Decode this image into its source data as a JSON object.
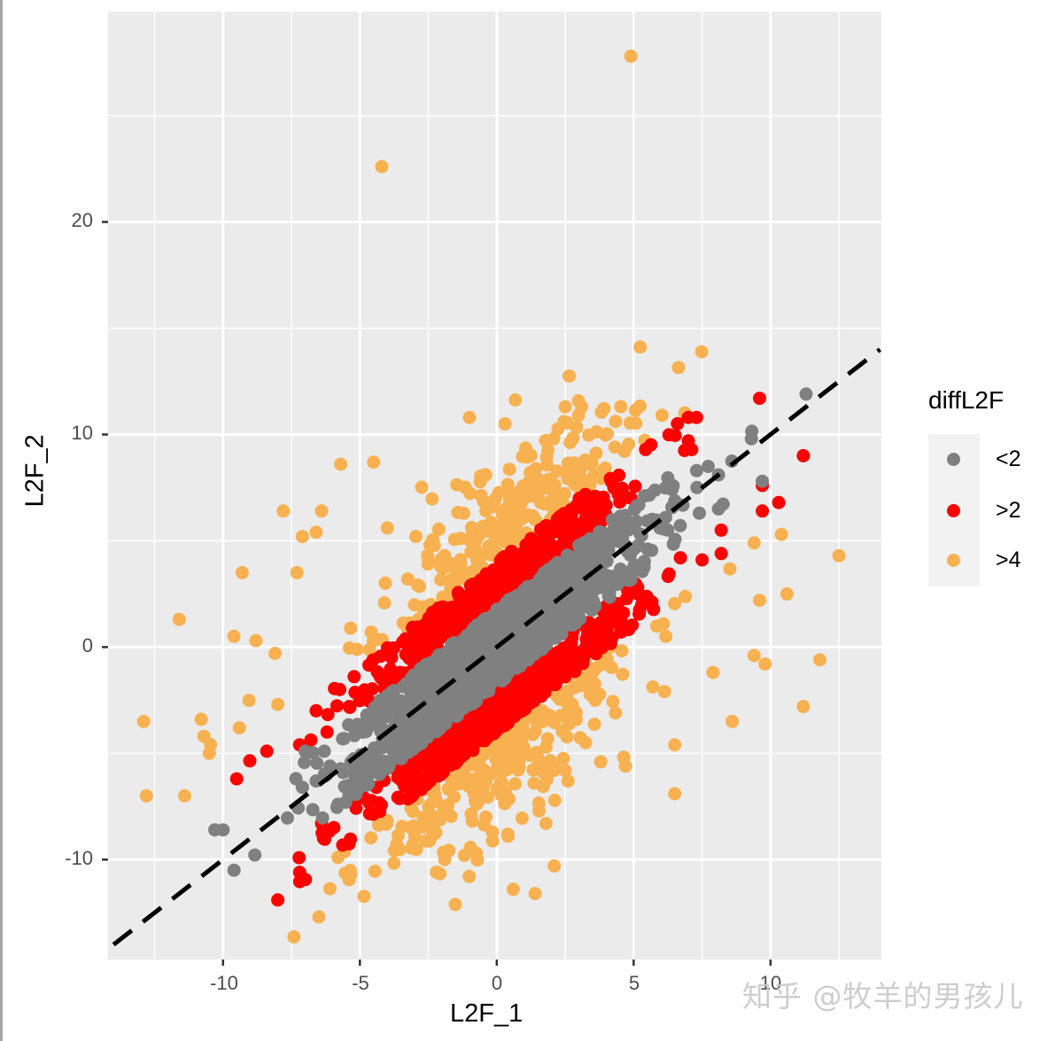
{
  "chart_data": {
    "type": "scatter",
    "title": "",
    "xlabel": "L2F_1",
    "ylabel": "L2F_2",
    "xlim": [
      -14.2,
      14.05
    ],
    "ylim": [
      -14.7,
      29.9
    ],
    "x_ticks": [
      -10,
      -5,
      0,
      5,
      10
    ],
    "y_ticks": [
      -10,
      0,
      10,
      20
    ],
    "x_minor": [
      -12.5,
      -7.5,
      -2.5,
      2.5,
      7.5,
      12.5
    ],
    "y_minor": [
      -5,
      5,
      15,
      25
    ],
    "grid": true,
    "panel_background": "#ebebeb",
    "reference_line": {
      "type": "dashed",
      "slope": 1,
      "intercept": 0,
      "color": "#000000",
      "from": [
        -14,
        -14
      ],
      "to": [
        14,
        14
      ]
    },
    "legend": {
      "title": "diffL2F",
      "position": "right",
      "entries": [
        {
          "label": "<2",
          "color": "#808080"
        },
        {
          "label": ">2",
          "color": "#ff0000"
        },
        {
          "label": ">4",
          "color": "#f8b150"
        }
      ]
    },
    "series": [
      {
        "name": "<2",
        "color": "#808080",
        "description": "dense band along y=x, |L2F_2 - L2F_1| < 2",
        "cloud": {
          "count": 1400,
          "x_center": 0,
          "x_sd": 2.6,
          "resid_min": -1.99,
          "resid_max": 1.99
        },
        "points": [
          [
            11.3,
            11.9
          ],
          [
            9.3,
            9.8
          ],
          [
            8.1,
            8.1
          ],
          [
            7.3,
            8.3
          ],
          [
            9.7,
            7.8
          ],
          [
            8.1,
            6.5
          ],
          [
            7.4,
            6.3
          ],
          [
            -9.6,
            -10.5
          ],
          [
            -10.0,
            -8.6
          ],
          [
            -10.3,
            -8.6
          ],
          [
            -7.1,
            -6.6
          ],
          [
            -5.8,
            -7.4
          ],
          [
            -6.6,
            -6.3
          ],
          [
            -7.0,
            -4.9
          ],
          [
            -6.3,
            -4.9
          ]
        ]
      },
      {
        "name": ">2",
        "color": "#ff0000",
        "description": "flanking bands, 2 < |L2F_2 - L2F_1| < 4",
        "cloud": {
          "count": 900,
          "x_center": 0,
          "x_sd": 2.4,
          "resid_abs_min": 2.0,
          "resid_abs_max": 4.0
        },
        "points": [
          [
            9.6,
            11.7
          ],
          [
            7.3,
            10.8
          ],
          [
            7.0,
            10.8
          ],
          [
            7.0,
            9.7
          ],
          [
            11.2,
            9.0
          ],
          [
            9.7,
            7.6
          ],
          [
            9.7,
            6.4
          ],
          [
            10.3,
            6.8
          ],
          [
            8.2,
            5.5
          ],
          [
            8.2,
            4.4
          ],
          [
            7.5,
            4.1
          ],
          [
            -9.5,
            -6.2
          ],
          [
            -8.4,
            -4.9
          ],
          [
            -7.2,
            -4.6
          ],
          [
            -6.4,
            -8.3
          ],
          [
            -7.2,
            -10.6
          ],
          [
            -8.0,
            -11.9
          ],
          [
            -5.2,
            -7.3
          ],
          [
            -4.4,
            -6.6
          ],
          [
            -3.4,
            -6.2
          ],
          [
            -6.6,
            -3.0
          ],
          [
            -6.2,
            -4.0
          ]
        ]
      },
      {
        "name": ">4",
        "color": "#f8b150",
        "description": "outer scatter, |L2F_2 - L2F_1| > 4",
        "cloud": {
          "count": 520,
          "x_center": 0,
          "x_sd": 2.6,
          "resid_abs_min": 4.0,
          "resid_abs_sd": 2.2
        },
        "points": [
          [
            4.9,
            27.8
          ],
          [
            -4.2,
            22.6
          ],
          [
            2.5,
            11.3
          ],
          [
            3.1,
            11.3
          ],
          [
            0.3,
            10.5
          ],
          [
            -1.0,
            10.8
          ],
          [
            -4.5,
            8.7
          ],
          [
            -5.7,
            8.6
          ],
          [
            -7.8,
            6.4
          ],
          [
            -6.4,
            6.4
          ],
          [
            -6.6,
            5.4
          ],
          [
            -7.1,
            5.2
          ],
          [
            -9.3,
            3.5
          ],
          [
            -7.3,
            3.5
          ],
          [
            -11.6,
            1.3
          ],
          [
            -9.6,
            0.5
          ],
          [
            -8.8,
            0.3
          ],
          [
            -8.1,
            -0.3
          ],
          [
            -12.9,
            -3.5
          ],
          [
            -10.8,
            -3.4
          ],
          [
            -10.7,
            -4.2
          ],
          [
            -10.5,
            -5.0
          ],
          [
            -9.4,
            -3.8
          ],
          [
            -8.0,
            -2.7
          ],
          [
            -12.8,
            -7.0
          ],
          [
            -11.4,
            -7.0
          ],
          [
            -5.8,
            -9.9
          ],
          [
            -6.5,
            -12.7
          ],
          [
            -1.9,
            -10.0
          ],
          [
            -2.3,
            -8.8
          ],
          [
            -2.2,
            -10.6
          ],
          [
            0.6,
            -11.4
          ],
          [
            1.4,
            -11.6
          ],
          [
            2.1,
            -10.3
          ],
          [
            1.8,
            -8.3
          ],
          [
            0.4,
            -8.8
          ],
          [
            12.5,
            4.3
          ],
          [
            10.6,
            2.5
          ],
          [
            9.6,
            2.2
          ],
          [
            11.8,
            -0.6
          ],
          [
            9.8,
            -0.8
          ],
          [
            9.4,
            -0.4
          ],
          [
            11.2,
            -2.8
          ],
          [
            8.6,
            -3.5
          ],
          [
            7.9,
            -1.2
          ],
          [
            10.4,
            5.3
          ],
          [
            9.4,
            4.9
          ],
          [
            6.5,
            -6.9
          ],
          [
            6.5,
            -4.6
          ],
          [
            4.7,
            -5.6
          ],
          [
            2.5,
            -5.8
          ],
          [
            3.8,
            -5.4
          ],
          [
            2.6,
            -6.3
          ]
        ]
      }
    ]
  },
  "axes": {
    "x_title": "L2F_1",
    "y_title": "L2F_2",
    "x_tick_labels": [
      "-10",
      "-5",
      "0",
      "5",
      "10"
    ],
    "y_tick_labels": [
      "20",
      "10",
      "0",
      "-10"
    ]
  },
  "legend": {
    "title": "diffL2F",
    "items": [
      {
        "label": "<2",
        "color": "#808080"
      },
      {
        "label": ">2",
        "color": "#ff0000"
      },
      {
        "label": ">4",
        "color": "#f8b150"
      }
    ]
  },
  "watermark": "知乎 @牧羊的男孩儿"
}
